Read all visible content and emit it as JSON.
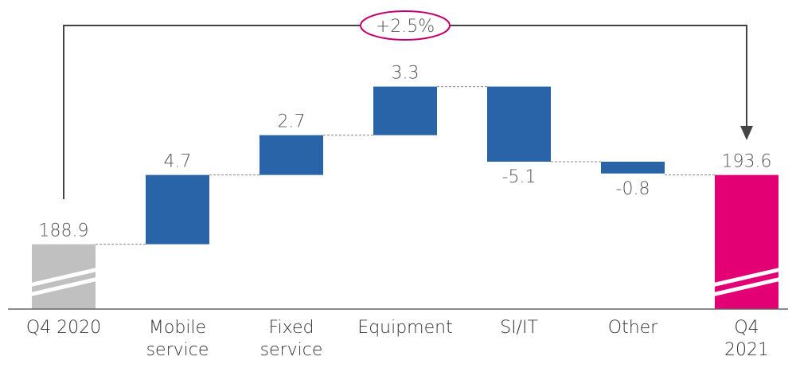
{
  "chart_data": {
    "type": "waterfall",
    "categories": [
      "Q4 2020",
      "Mobile service",
      "Fixed service",
      "Equipment",
      "SI/IT",
      "Other",
      "Q4 2021"
    ],
    "values": [
      188.9,
      4.7,
      2.7,
      3.3,
      -5.1,
      -0.8,
      193.6
    ],
    "measures": [
      "absolute",
      "relative",
      "relative",
      "relative",
      "relative",
      "relative",
      "total"
    ],
    "colors": [
      "#c0c0c0",
      "#2a64a8",
      "#2a64a8",
      "#2a64a8",
      "#2a64a8",
      "#2a64a8",
      "#e20074"
    ],
    "ylim": [
      184.5,
      201
    ],
    "axis_break": true,
    "annotation": "+2.5%"
  }
}
